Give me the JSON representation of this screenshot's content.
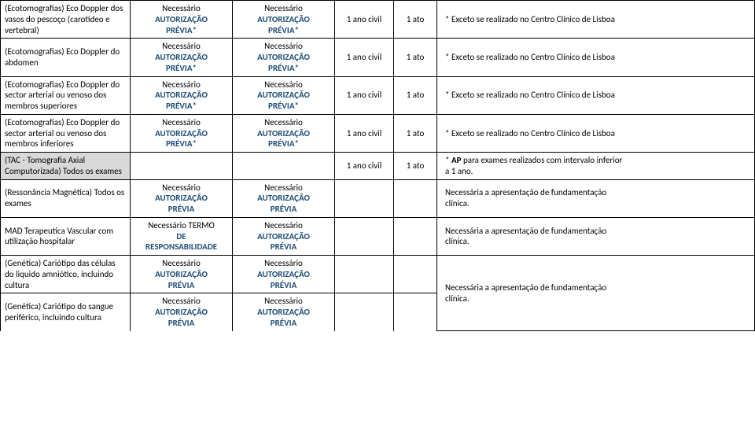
{
  "labels": {
    "necessario": "Necessário",
    "autorizacao": "AUTORIZAÇÃO",
    "previa_star": "PRÉVIA*",
    "previa": "PRÉVIA",
    "termo": "Necessário TERMO",
    "de": "DE",
    "responsabilidade": "RESPONSABILIDADE",
    "ano_civil": "1 ano civil",
    "um_ato": "1 ato"
  },
  "rows": [
    {
      "desc": "(Ecotomografias) Eco Doppler dos vasos do pescoço (carotídeo e vertebral)",
      "obs": "* Exceto se realizado no Centro Clínico de Lisboa"
    },
    {
      "desc": "(Ecotomografias) Eco Doppler do abdomen",
      "obs": "* Exceto se realizado no Centro Clínico de Lisboa"
    },
    {
      "desc": "(Ecotomografias) Eco Doppler do sector arterial ou venoso dos membros superiores",
      "obs": "* Exceto se realizado no Centro Clínico de Lisboa"
    },
    {
      "desc": "(Ecotomografias) Eco Doppler do sector arterial ou venoso dos membros inferiores",
      "obs": "* Exceto se realizado no Centro Clínico de Lisboa"
    },
    {
      "desc": "(TAC - Tomografia Axial Computorizada) Todos os exames",
      "obs_line1": "* AP para exames realizados com intervalo inferior",
      "obs_line2": "a 1 ano."
    },
    {
      "desc": "(Ressonância Magnética) Todos os exames",
      "obs_line1": "Necessária a apresentação de fundamentação",
      "obs_line2": "clínica."
    },
    {
      "desc": "MAD Terapeutica Vascular com utilização hospitalar",
      "obs_line1": "Necessária a apresentação de fundamentação",
      "obs_line2": "clínica."
    },
    {
      "desc": "(Genética) Cariótipo das células do liquido amniótico, incluindo cultura"
    },
    {
      "desc": "(Genética) Cariótipo do sangue periférico, incluindo cultura",
      "obs_line1": "Necessária a apresentação de fundamentação",
      "obs_line2": "clínica."
    }
  ],
  "colors": {
    "text": "#000000",
    "blue": "#1f4e79",
    "gray_bg": "#d9d9d9",
    "border": "#000000",
    "bg": "#ffffff"
  }
}
